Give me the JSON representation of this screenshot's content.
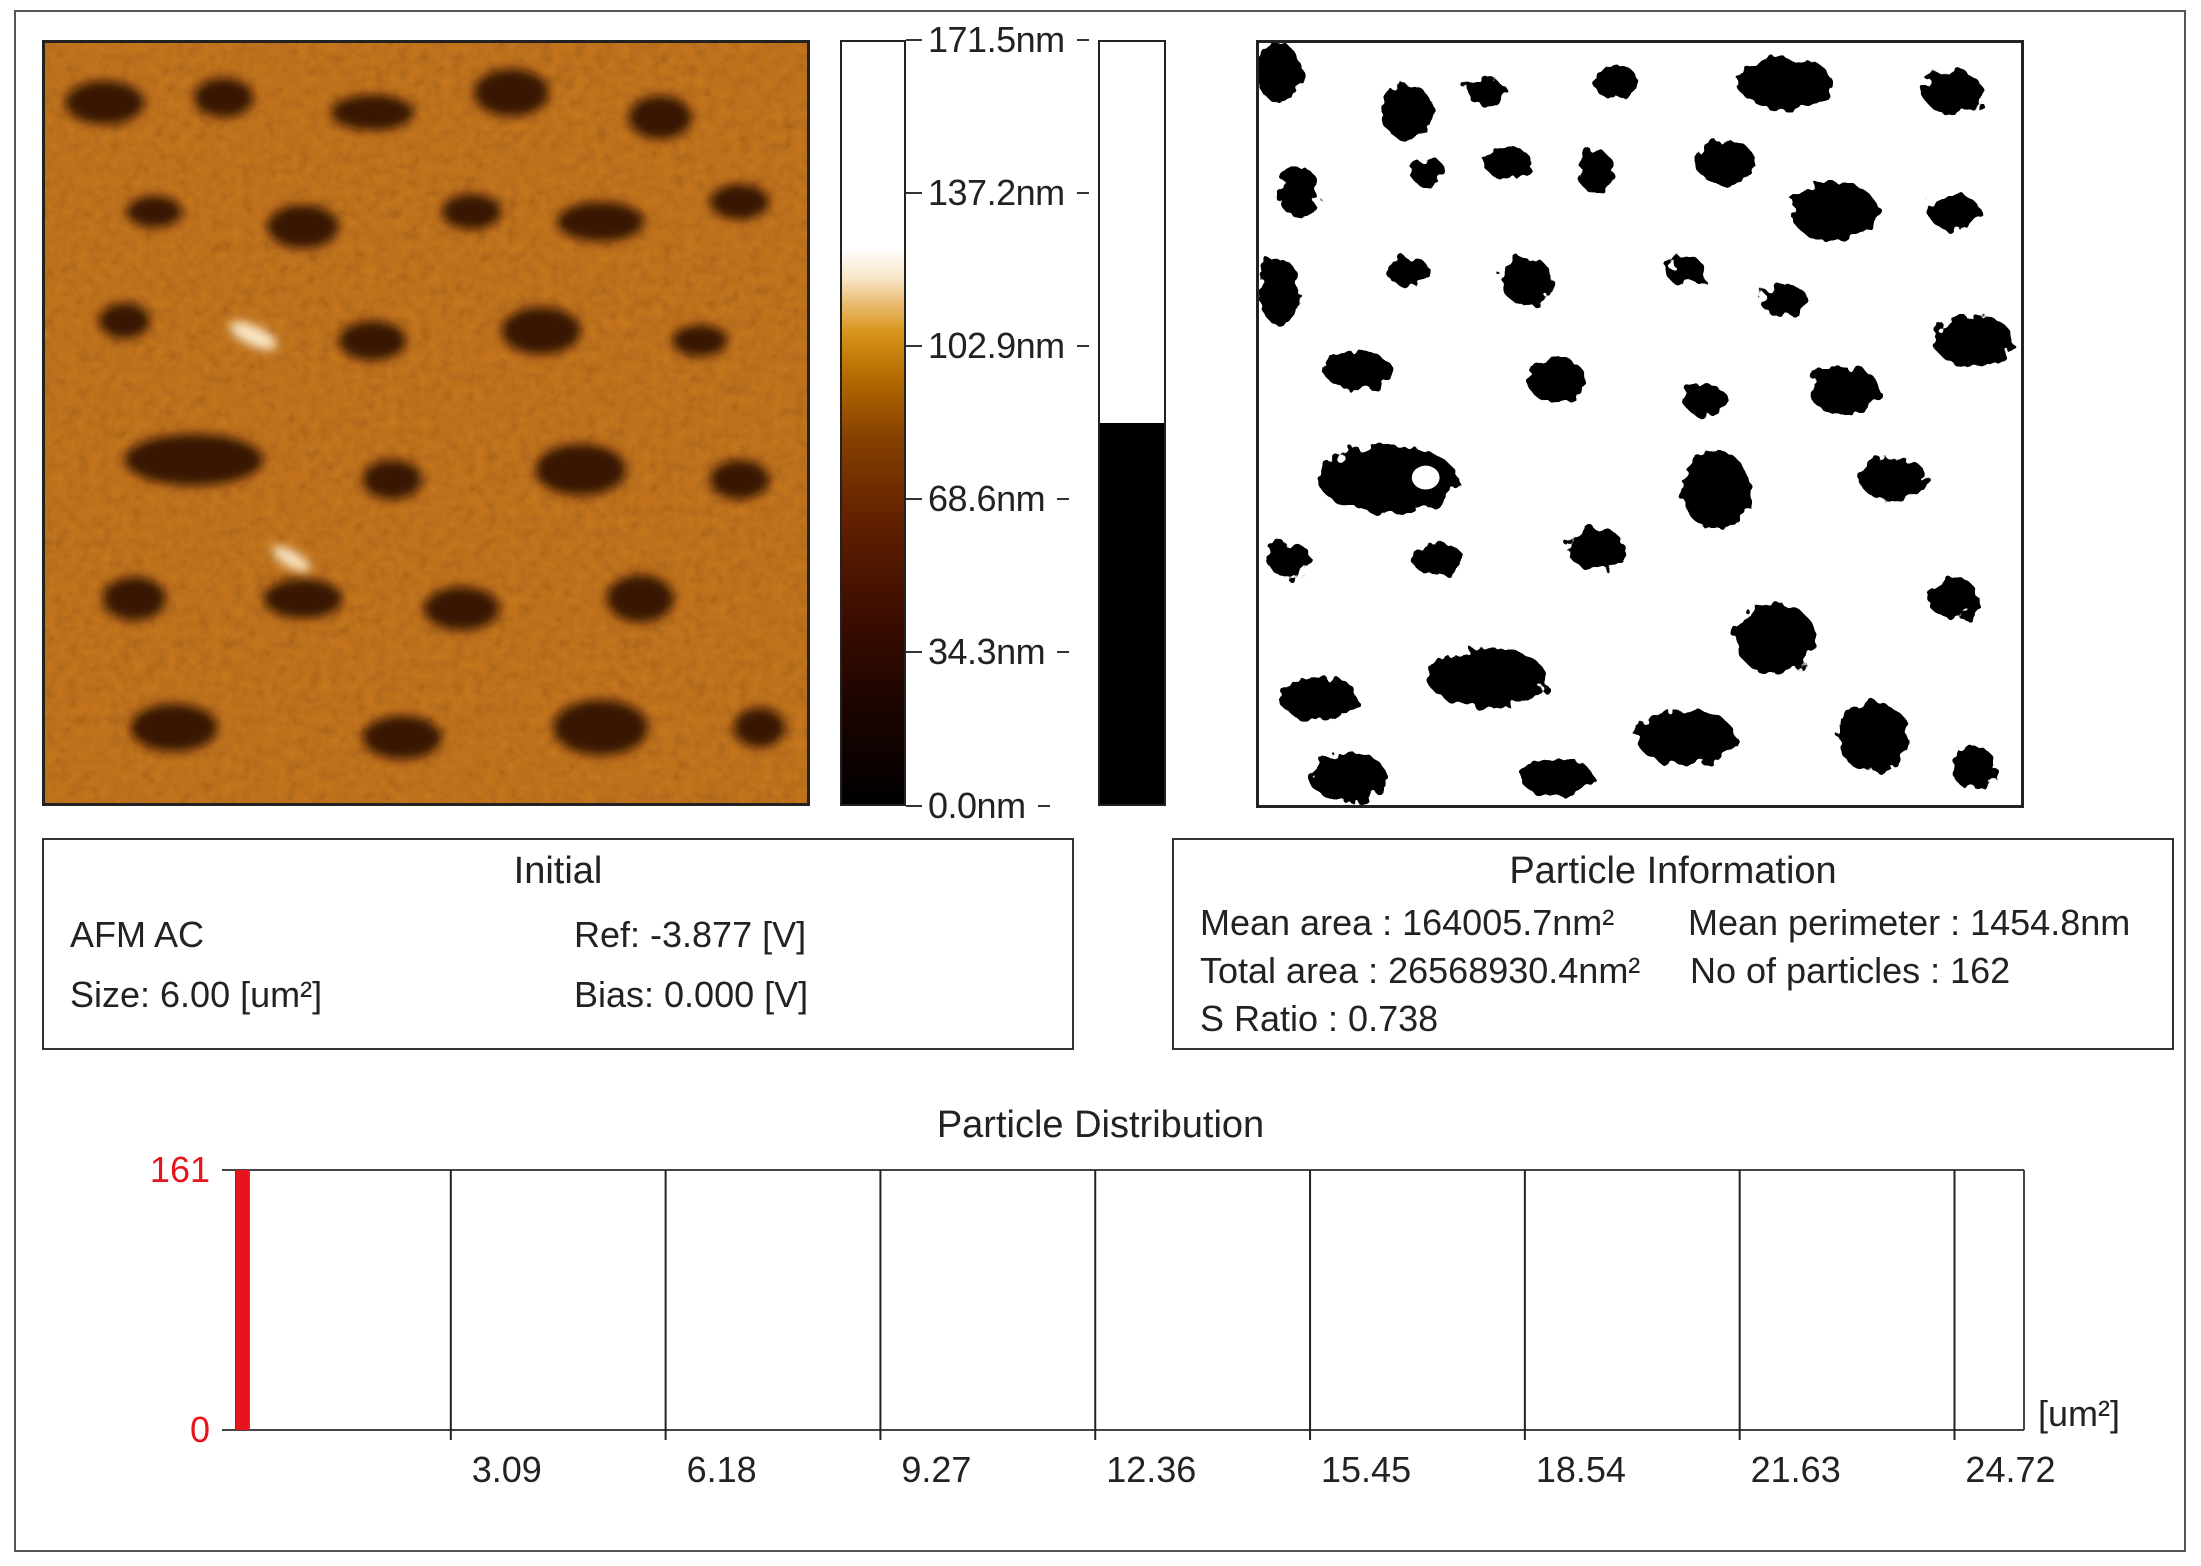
{
  "height_scale": {
    "ticks": [
      "171.5nm",
      "137.2nm",
      "102.9nm",
      "68.6nm",
      "34.3nm",
      "0.0nm"
    ],
    "max_nm": 171.5,
    "colormap": "afm-gold"
  },
  "threshold": {
    "level_fraction": 0.5
  },
  "initial": {
    "title": "Initial",
    "mode": "AFM AC",
    "size": "Size: 6.00 [um²]",
    "ref": "Ref: -3.877 [V]",
    "bias": "Bias: 0.000 [V]"
  },
  "particle_info": {
    "title": "Particle Information",
    "mean_area": "Mean area : 164005.7nm²",
    "mean_perimeter": "Mean perimeter : 1454.8nm",
    "total_area": "Total area : 26568930.4nm²",
    "no_of_particles": "No of particles : 162",
    "s_ratio": "S Ratio : 0.738"
  },
  "chart_data": {
    "type": "bar",
    "title": "Particle Distribution",
    "xlabel": "[um²]",
    "ylabel": "",
    "x_ticks": [
      3.09,
      6.18,
      9.27,
      12.36,
      15.45,
      18.54,
      21.63,
      24.72
    ],
    "x_tick_labels": [
      "3.09",
      "6.18",
      "9.27",
      "12.36",
      "15.45",
      "18.54",
      "21.63",
      "24.72"
    ],
    "xlim": [
      0,
      25.72
    ],
    "ylim": [
      0,
      161
    ],
    "y_tick_labels": [
      "161",
      "0"
    ],
    "bars": [
      {
        "x_start": 0,
        "x_end": 0.2,
        "value": 161
      }
    ],
    "grid": "vertical",
    "bar_color": "#e8141c",
    "axis_label_color": "#e8141c"
  }
}
